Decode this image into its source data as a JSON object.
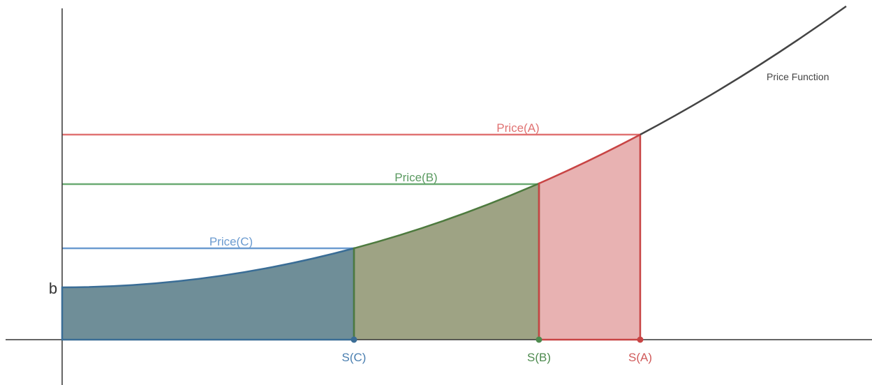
{
  "labels": {
    "price_function": "Price Function",
    "price_a": "Price(A)",
    "price_b": "Price(B)",
    "price_c": "Price(C)",
    "s_a": "S(A)",
    "s_b": "S(B)",
    "s_c": "S(C)",
    "intercept": "b"
  }
}
